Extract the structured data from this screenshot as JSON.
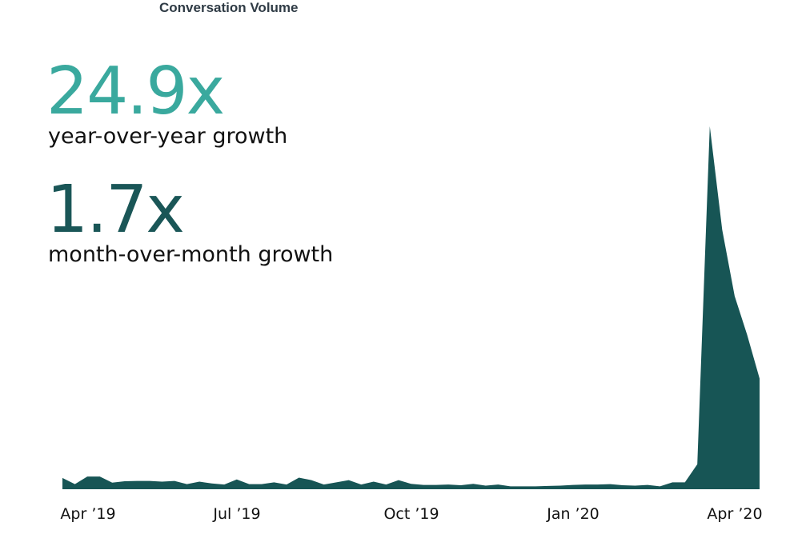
{
  "chart_data": {
    "type": "area",
    "title": "Conversation Volume",
    "xlabel": "",
    "ylabel": "",
    "x_ticks": [
      "Apr ’19",
      "Jul ’19",
      "Oct ’19",
      "Jan ’20",
      "Apr ’20"
    ],
    "grid": false,
    "color": "#175555",
    "stats": [
      {
        "value": "24.9x",
        "label": "year-over-year growth",
        "color": "#3aa99e"
      },
      {
        "value": "1.7x",
        "label": "month-over-month growth",
        "color": "#1a5657"
      }
    ],
    "ylim": [
      0,
      100
    ],
    "series": [
      {
        "values": [
          3.1,
          1.4,
          3.5,
          3.5,
          1.8,
          2.2,
          2.3,
          2.3,
          2.1,
          2.3,
          1.4,
          2.1,
          1.6,
          1.3,
          2.7,
          1.4,
          1.4,
          1.9,
          1.3,
          3.2,
          2.5,
          1.3,
          1.9,
          2.5,
          1.3,
          2.1,
          1.3,
          2.5,
          1.5,
          1.2,
          1.2,
          1.3,
          1.1,
          1.5,
          1.0,
          1.3,
          0.8,
          0.8,
          0.8,
          0.9,
          1.0,
          1.2,
          1.3,
          1.3,
          1.4,
          1.1,
          1.0,
          1.2,
          0.8,
          1.9,
          1.9,
          6.9,
          100.0,
          71.5,
          53.2,
          42.6,
          30.5
        ]
      }
    ]
  }
}
